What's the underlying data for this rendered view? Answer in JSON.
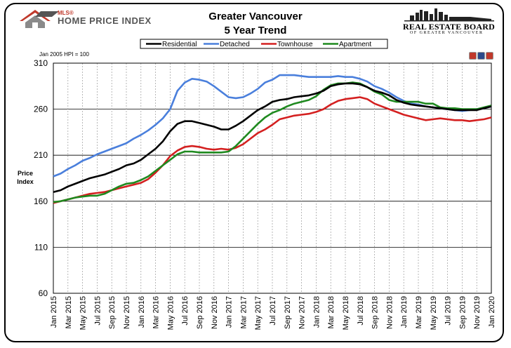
{
  "logo_left": {
    "mls": "MLS®",
    "hpi": "HOME PRICE INDEX"
  },
  "logo_right": {
    "line1": "REAL ESTATE BOARD",
    "line2": "OF GREATER VANCOUVER"
  },
  "colors": {
    "Residential": "#000000",
    "Detached": "#4a7fdc",
    "Townhouse": "#d42020",
    "Apartment": "#1f8a1f",
    "logo_red": "#c0392b"
  },
  "chart_data": {
    "type": "line",
    "title": "Greater Vancouver",
    "subtitle": "5 Year Trend",
    "base_note": "Jan 2005 HPI = 100",
    "ylabel": "Price Index",
    "ylim": [
      60,
      310
    ],
    "yticks": [
      60,
      110,
      160,
      210,
      260,
      310
    ],
    "grid": true,
    "legend_position": "top-center",
    "x": [
      "Jan 2015",
      "Feb 2015",
      "Mar 2015",
      "Apr 2015",
      "May 2015",
      "Jun 2015",
      "Jul 2015",
      "Aug 2015",
      "Sep 2015",
      "Oct 2015",
      "Nov 2015",
      "Dec 2015",
      "Jan 2016",
      "Feb 2016",
      "Mar 2016",
      "Apr 2016",
      "May 2016",
      "Jun 2016",
      "Jul 2016",
      "Aug 2016",
      "Sep 2016",
      "Oct 2016",
      "Nov 2016",
      "Dec 2016",
      "Jan 2017",
      "Feb 2017",
      "Mar 2017",
      "Apr 2017",
      "May 2017",
      "Jun 2017",
      "Jul 2017",
      "Aug 2017",
      "Sep 2017",
      "Oct 2017",
      "Nov 2017",
      "Dec 2017",
      "Jan 2018",
      "Feb 2018",
      "Mar 2018",
      "Apr 2018",
      "May 2018",
      "Jun 2018",
      "Jul 2018",
      "Aug 2018",
      "Sep 2018",
      "Oct 2018",
      "Nov 2018",
      "Dec 2018",
      "Jan 2019",
      "Feb 2019",
      "Mar 2019",
      "Apr 2019",
      "May 2019",
      "Jun 2019",
      "Jul 2019",
      "Aug 2019",
      "Sep 2019",
      "Oct 2019",
      "Nov 2019",
      "Dec 2019",
      "Jan 2020"
    ],
    "xtick_labels": [
      "Jan 2015",
      "Mar 2015",
      "May 2015",
      "Jul 2015",
      "Sep 2015",
      "Nov 2015",
      "Jan 2016",
      "Mar 2016",
      "May 2016",
      "Jul 2016",
      "Sep 2016",
      "Nov 2016",
      "Jan 2017",
      "Mar 2017",
      "May 2017",
      "Jul 2017",
      "Sep 2017",
      "Nov 2017",
      "Jan 2018",
      "Mar 2018",
      "May 2018",
      "Jul 2018",
      "Sep 2018",
      "Nov 2018",
      "Jan 2019",
      "Mar 2019",
      "May 2019",
      "Jul 2019",
      "Sep 2019",
      "Nov 2019",
      "Jan 2020"
    ],
    "series": [
      {
        "name": "Residential",
        "values": [
          170,
          172,
          176,
          179,
          182,
          185,
          187,
          189,
          192,
          195,
          199,
          201,
          205,
          211,
          217,
          225,
          236,
          244,
          247,
          247,
          245,
          243,
          241,
          238,
          238,
          242,
          247,
          253,
          259,
          263,
          268,
          270,
          271,
          273,
          274,
          275,
          277,
          280,
          285,
          287,
          288,
          288,
          287,
          284,
          280,
          278,
          275,
          270,
          267,
          265,
          264,
          263,
          262,
          261,
          260,
          259,
          259,
          259,
          259,
          261,
          263
        ]
      },
      {
        "name": "Detached",
        "values": [
          187,
          190,
          195,
          199,
          204,
          207,
          211,
          214,
          217,
          220,
          223,
          228,
          232,
          237,
          243,
          250,
          260,
          280,
          289,
          293,
          292,
          290,
          285,
          279,
          273,
          272,
          273,
          277,
          282,
          289,
          292,
          297,
          297,
          297,
          296,
          295,
          295,
          295,
          295,
          296,
          295,
          295,
          293,
          290,
          285,
          282,
          278,
          273,
          269,
          266,
          265,
          263,
          262,
          261,
          260,
          259,
          258,
          259,
          260,
          261,
          263
        ]
      },
      {
        "name": "Townhouse",
        "values": [
          158,
          160,
          162,
          164,
          166,
          168,
          169,
          170,
          172,
          174,
          176,
          178,
          180,
          184,
          191,
          199,
          209,
          215,
          219,
          220,
          219,
          217,
          216,
          217,
          216,
          218,
          222,
          228,
          234,
          238,
          243,
          249,
          251,
          253,
          254,
          255,
          257,
          260,
          265,
          269,
          271,
          272,
          273,
          271,
          266,
          263,
          260,
          257,
          254,
          252,
          250,
          248,
          249,
          250,
          249,
          248,
          248,
          247,
          248,
          249,
          251
        ]
      },
      {
        "name": "Apartment",
        "values": [
          159,
          160,
          162,
          164,
          165,
          166,
          166,
          168,
          172,
          176,
          179,
          180,
          183,
          187,
          193,
          199,
          205,
          211,
          214,
          214,
          213,
          213,
          213,
          213,
          214,
          220,
          228,
          236,
          244,
          251,
          256,
          259,
          263,
          266,
          268,
          270,
          274,
          281,
          286,
          288,
          288,
          289,
          288,
          284,
          279,
          276,
          270,
          268,
          268,
          268,
          268,
          266,
          266,
          262,
          261,
          261,
          260,
          260,
          260,
          262,
          264
        ]
      }
    ]
  }
}
